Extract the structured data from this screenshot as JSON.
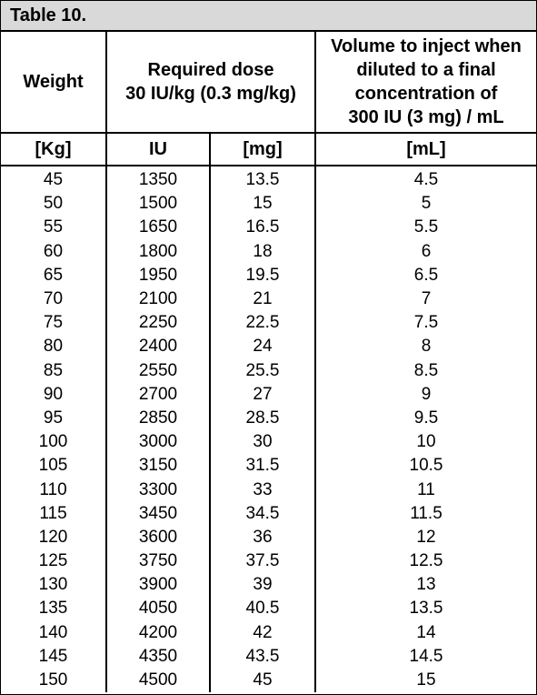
{
  "title": "Table 10.",
  "headers": {
    "weight": "Weight",
    "dose_line1": "Required dose",
    "dose_line2": "30 IU/kg (0.3 mg/kg)",
    "volume_line1": "Volume to inject when",
    "volume_line2": "diluted to a final",
    "volume_line3": "concentration of",
    "volume_line4": "300 IU (3 mg) / mL"
  },
  "units": {
    "kg": "[Kg]",
    "iu": "IU",
    "mg": "[mg]",
    "ml": "[mL]"
  },
  "rows": [
    [
      "45",
      "1350",
      "13.5",
      "4.5"
    ],
    [
      "50",
      "1500",
      "15",
      "5"
    ],
    [
      "55",
      "1650",
      "16.5",
      "5.5"
    ],
    [
      "60",
      "1800",
      "18",
      "6"
    ],
    [
      "65",
      "1950",
      "19.5",
      "6.5"
    ],
    [
      "70",
      "2100",
      "21",
      "7"
    ],
    [
      "75",
      "2250",
      "22.5",
      "7.5"
    ],
    [
      "80",
      "2400",
      "24",
      "8"
    ],
    [
      "85",
      "2550",
      "25.5",
      "8.5"
    ],
    [
      "90",
      "2700",
      "27",
      "9"
    ],
    [
      "95",
      "2850",
      "28.5",
      "9.5"
    ],
    [
      "100",
      "3000",
      "30",
      "10"
    ],
    [
      "105",
      "3150",
      "31.5",
      "10.5"
    ],
    [
      "110",
      "3300",
      "33",
      "11"
    ],
    [
      "115",
      "3450",
      "34.5",
      "11.5"
    ],
    [
      "120",
      "3600",
      "36",
      "12"
    ],
    [
      "125",
      "3750",
      "37.5",
      "12.5"
    ],
    [
      "130",
      "3900",
      "39",
      "13"
    ],
    [
      "135",
      "4050",
      "40.5",
      "13.5"
    ],
    [
      "140",
      "4200",
      "42",
      "14"
    ],
    [
      "145",
      "4350",
      "43.5",
      "14.5"
    ],
    [
      "150",
      "4500",
      "45",
      "15"
    ]
  ]
}
